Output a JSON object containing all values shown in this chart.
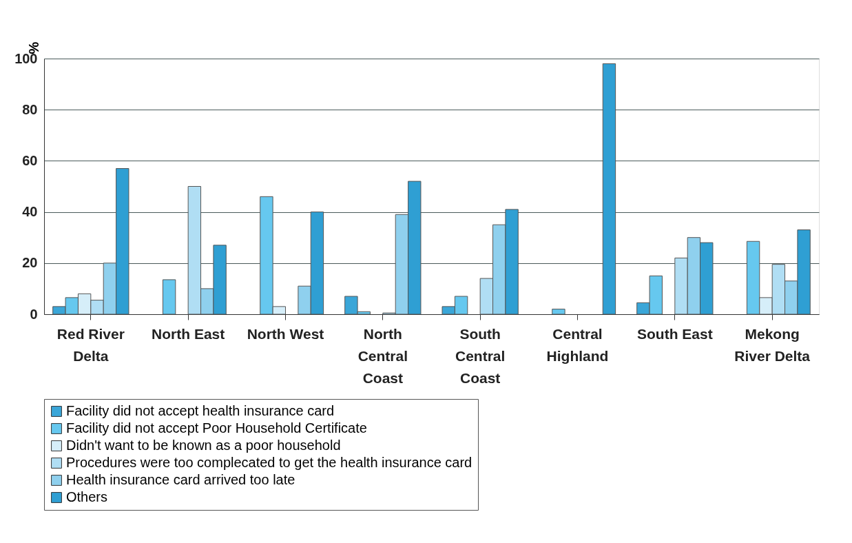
{
  "chart_data": {
    "type": "bar",
    "ylabel": "%",
    "categories": [
      "Red River Delta",
      "North East",
      "North West",
      "North Central Coast",
      "South Central Coast",
      "Central Highland",
      "South East",
      "Mekong River Delta"
    ],
    "series": [
      {
        "name": "Facility did not accept health insurance card",
        "color": "#3aa6d8",
        "values": [
          3,
          null,
          null,
          7,
          3,
          null,
          4.5,
          null
        ]
      },
      {
        "name": "Facility did not accept Poor Household Certificate",
        "color": "#66c8ef",
        "values": [
          6.5,
          13.5,
          46,
          1,
          7,
          2,
          15,
          28.5
        ]
      },
      {
        "name": "Didn't want to be known as a poor household",
        "color": "#d6eef9",
        "values": [
          8,
          null,
          3,
          null,
          null,
          null,
          null,
          6.5
        ]
      },
      {
        "name": "Procedures were too complecated to get the health insurance card",
        "color": "#b0def4",
        "values": [
          5.5,
          50,
          null,
          0.5,
          14,
          null,
          22,
          19.5
        ]
      },
      {
        "name": "Health insurance card arrived too late",
        "color": "#8fd0ee",
        "values": [
          20,
          10,
          11,
          39,
          35,
          null,
          30,
          13
        ]
      },
      {
        "name": "Others",
        "color": "#2f9fd3",
        "values": [
          57,
          27,
          40,
          52,
          41,
          98,
          28,
          33
        ]
      }
    ],
    "ylim": [
      0,
      100
    ],
    "yticks": [
      0,
      20,
      40,
      60,
      80,
      100
    ],
    "grid": "y",
    "legend": "bottom"
  }
}
